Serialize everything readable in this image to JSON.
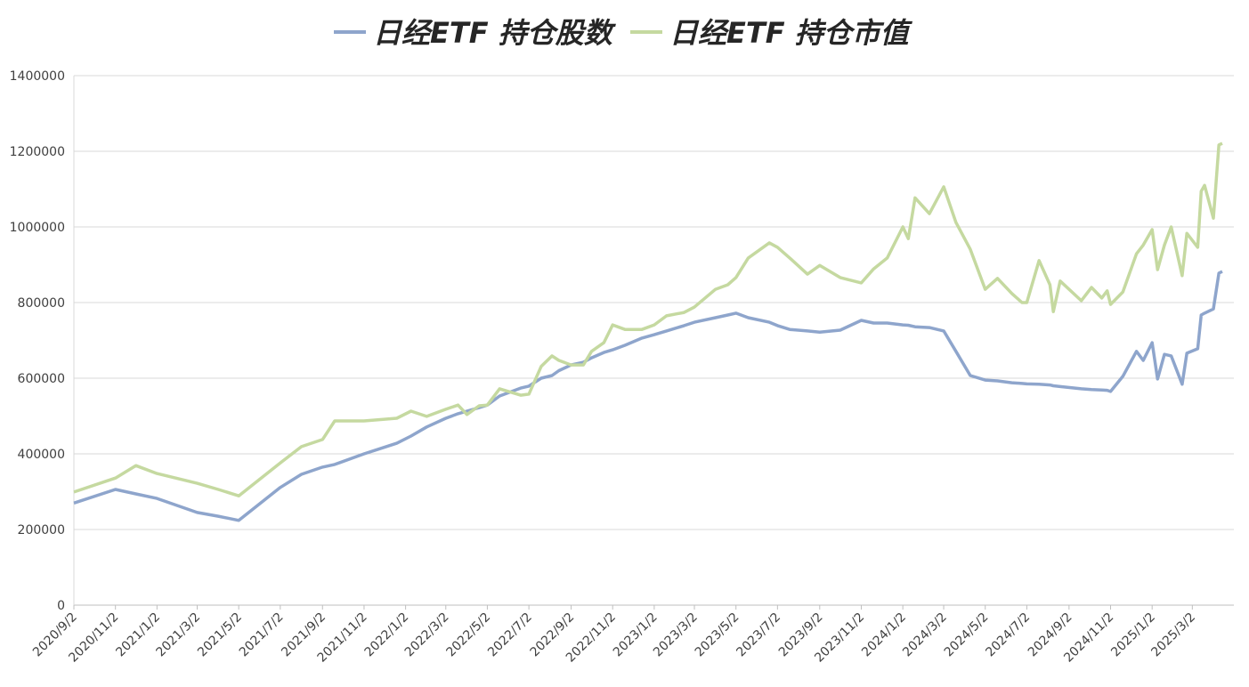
{
  "chart_data": {
    "type": "line",
    "x": [
      "2020/9/2",
      "2020/11/2",
      "2020/12/2",
      "2021/1/2",
      "2021/3/2",
      "2021/4/2",
      "2021/5/2",
      "2021/7/2",
      "2021/8/2",
      "2021/9/2",
      "2021/9/20",
      "2021/11/2",
      "2021/12/20",
      "2022/1/10",
      "2022/2/2",
      "2022/3/2",
      "2022/3/20",
      "2022/4/2",
      "2022/4/20",
      "2022/5/2",
      "2022/5/20",
      "2022/6/20",
      "2022/7/2",
      "2022/7/20",
      "2022/8/5",
      "2022/8/15",
      "2022/9/2",
      "2022/9/20",
      "2022/10/2",
      "2022/10/20",
      "2022/11/2",
      "2022/11/20",
      "2022/12/15",
      "2023/1/2",
      "2023/1/20",
      "2023/2/15",
      "2023/3/2",
      "2023/4/2",
      "2023/4/20",
      "2023/5/2",
      "2023/5/20",
      "2023/6/20",
      "2023/7/2",
      "2023/7/20",
      "2023/8/15",
      "2023/9/2",
      "2023/10/2",
      "2023/11/2",
      "2023/11/20",
      "2023/12/10",
      "2024/1/2",
      "2024/1/10",
      "2024/1/20",
      "2024/2/10",
      "2024/3/2",
      "2024/3/20",
      "2024/4/10",
      "2024/5/2",
      "2024/5/20",
      "2024/6/10",
      "2024/6/25",
      "2024/7/2",
      "2024/7/20",
      "2024/8/5",
      "2024/8/10",
      "2024/8/20",
      "2024/9/20",
      "2024/10/5",
      "2024/10/20",
      "2024/10/28",
      "2024/11/2",
      "2024/11/20",
      "2024/12/10",
      "2024/12/20",
      "2025/1/2",
      "2025/1/10",
      "2025/1/20",
      "2025/1/30",
      "2025/2/15",
      "2025/2/22",
      "2025/3/10",
      "2025/3/15",
      "2025/3/20",
      "2025/4/2",
      "2025/4/10",
      "2025/4/15"
    ],
    "series": [
      {
        "name": "日经ETF 持仓股数",
        "color": "#8ea5cc",
        "values": [
          270000,
          306000,
          294000,
          282000,
          245000,
          235000,
          224000,
          311000,
          346000,
          365000,
          372000,
          400000,
          428000,
          447000,
          471000,
          494000,
          506000,
          513000,
          522000,
          529000,
          553000,
          574000,
          579000,
          600000,
          607000,
          620000,
          635000,
          642000,
          654000,
          668000,
          675000,
          687000,
          706000,
          715000,
          725000,
          739000,
          748000,
          760000,
          767000,
          772000,
          760000,
          748000,
          739000,
          729000,
          725000,
          722000,
          727000,
          753000,
          746000,
          746000,
          741000,
          740000,
          736000,
          734000,
          725000,
          671000,
          607000,
          595000,
          593000,
          588000,
          586000,
          585000,
          584000,
          582000,
          580000,
          578000,
          572000,
          570000,
          569000,
          568000,
          565000,
          605000,
          671000,
          647000,
          694000,
          598000,
          663000,
          659000,
          584000,
          666000,
          678000,
          767000,
          772000,
          783000,
          878000,
          882000
        ]
      },
      {
        "name": "日经ETF 持仓市值",
        "color": "#c5d9a0",
        "values": [
          299000,
          336000,
          369000,
          348000,
          322000,
          306000,
          289000,
          376000,
          419000,
          438000,
          487000,
          487000,
          494000,
          513000,
          499000,
          518000,
          529000,
          504000,
          527000,
          529000,
          572000,
          555000,
          558000,
          631000,
          659000,
          647000,
          635000,
          635000,
          671000,
          694000,
          741000,
          729000,
          729000,
          741000,
          765000,
          774000,
          788000,
          835000,
          847000,
          866000,
          918000,
          958000,
          946000,
          918000,
          875000,
          898000,
          866000,
          852000,
          889000,
          918000,
          1000000,
          969000,
          1077000,
          1035000,
          1106000,
          1012000,
          941000,
          835000,
          864000,
          824000,
          800000,
          800000,
          911000,
          847000,
          776000,
          857000,
          805000,
          840000,
          812000,
          831000,
          795000,
          828000,
          929000,
          952000,
          993000,
          887000,
          952000,
          1000000,
          871000,
          983000,
          946000,
          1094000,
          1110000,
          1023000,
          1217000,
          1221000
        ]
      }
    ],
    "xlim": [
      "2020/9/2",
      "2025/5/2"
    ],
    "xticks": [
      "2020/9/2",
      "2020/11/2",
      "2021/1/2",
      "2021/3/2",
      "2021/5/2",
      "2021/7/2",
      "2021/9/2",
      "2021/11/2",
      "2022/1/2",
      "2022/3/2",
      "2022/5/2",
      "2022/7/2",
      "2022/9/2",
      "2022/11/2",
      "2023/1/2",
      "2023/3/2",
      "2023/5/2",
      "2023/7/2",
      "2023/9/2",
      "2023/11/2",
      "2024/1/2",
      "2024/3/2",
      "2024/5/2",
      "2024/7/2",
      "2024/9/2",
      "2024/11/2",
      "2025/1/2",
      "2025/3/2"
    ],
    "ylim": [
      0,
      1400000
    ],
    "yticks": [
      0,
      200000,
      400000,
      600000,
      800000,
      1000000,
      1200000,
      1400000
    ],
    "grid": true,
    "legend": "top"
  }
}
